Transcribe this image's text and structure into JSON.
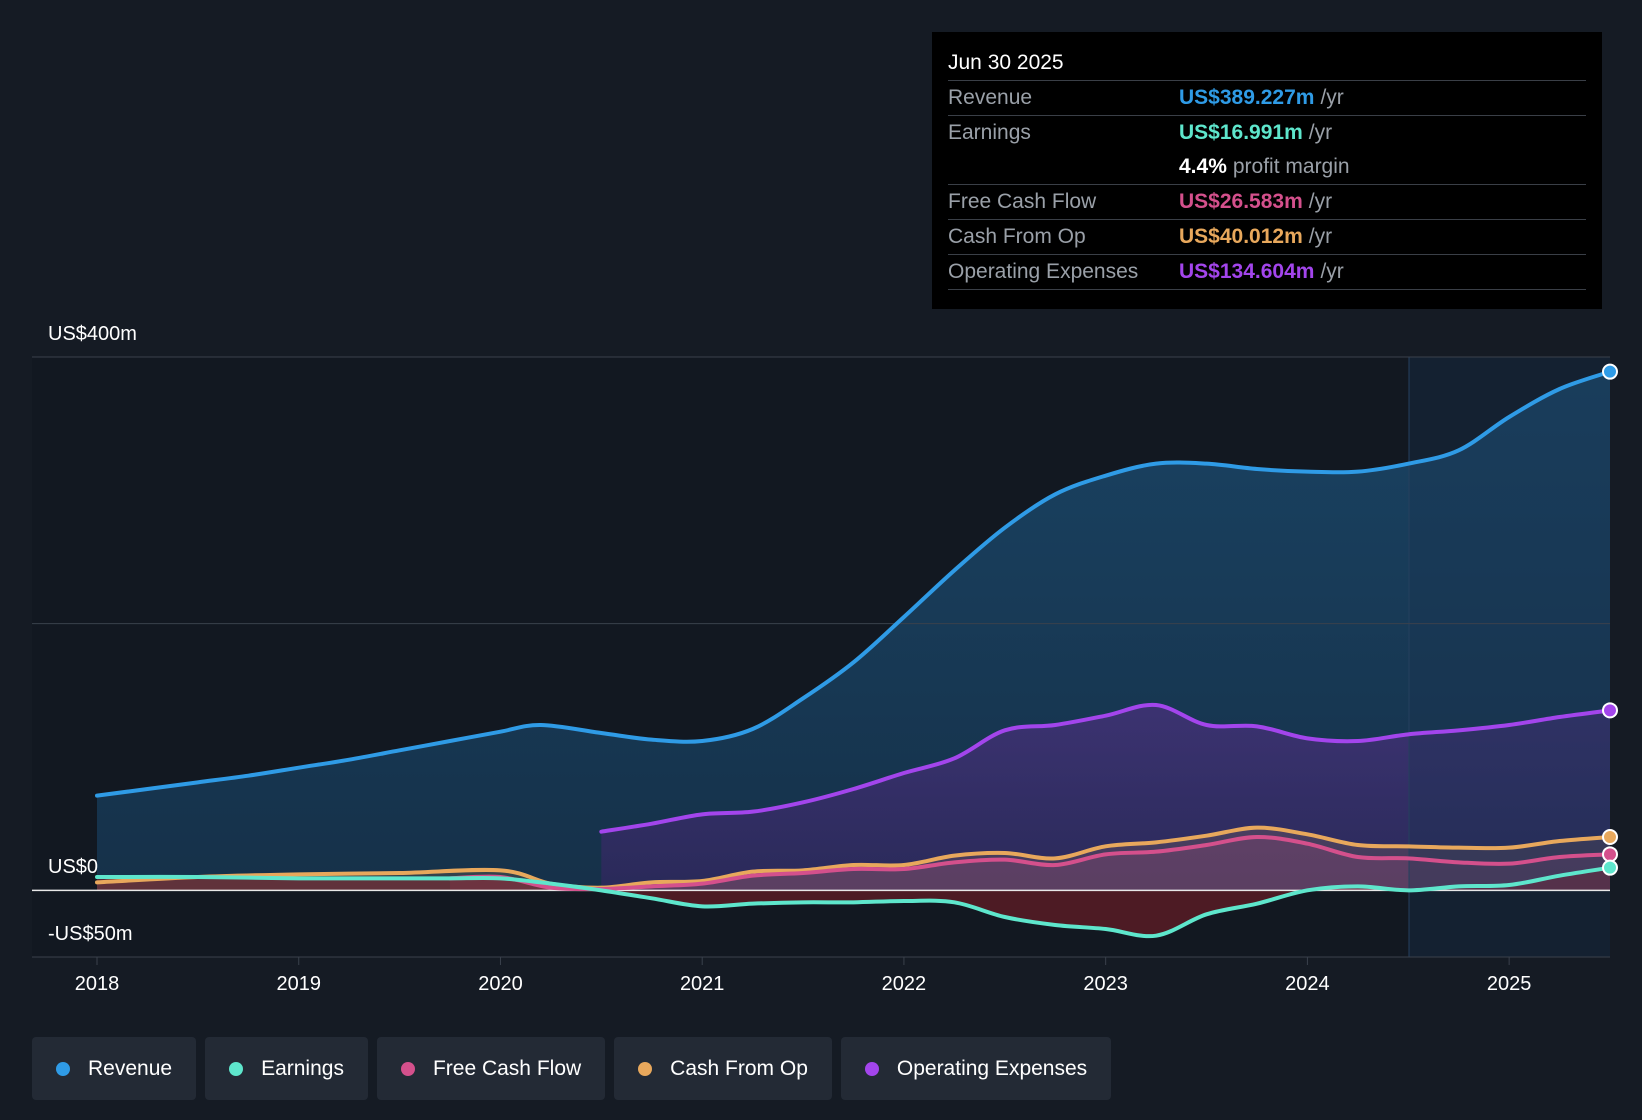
{
  "chart_data": {
    "type": "area",
    "x_ticks": [
      "2018",
      "2019",
      "2020",
      "2021",
      "2022",
      "2023",
      "2024",
      "2025"
    ],
    "y_labels": {
      "top": "US$400m",
      "zero": "US$0",
      "bottom": "-US$50m"
    },
    "ylim": [
      -50,
      400
    ],
    "series": [
      {
        "name": "Revenue",
        "color": "#2f9be6",
        "points": [
          [
            2018.0,
            71
          ],
          [
            2018.25,
            76
          ],
          [
            2018.5,
            81
          ],
          [
            2018.75,
            86
          ],
          [
            2019.0,
            92
          ],
          [
            2019.25,
            98
          ],
          [
            2019.5,
            105
          ],
          [
            2019.75,
            112
          ],
          [
            2020.0,
            119
          ],
          [
            2020.2,
            124
          ],
          [
            2020.5,
            118
          ],
          [
            2020.75,
            113
          ],
          [
            2021.0,
            112
          ],
          [
            2021.25,
            121
          ],
          [
            2021.5,
            144
          ],
          [
            2021.75,
            171
          ],
          [
            2022.0,
            205
          ],
          [
            2022.25,
            240
          ],
          [
            2022.5,
            272
          ],
          [
            2022.75,
            297
          ],
          [
            2023.0,
            311
          ],
          [
            2023.25,
            320
          ],
          [
            2023.5,
            320
          ],
          [
            2023.75,
            316
          ],
          [
            2024.0,
            314
          ],
          [
            2024.25,
            314
          ],
          [
            2024.5,
            320
          ],
          [
            2024.75,
            330
          ],
          [
            2025.0,
            355
          ],
          [
            2025.25,
            376
          ],
          [
            2025.5,
            389
          ]
        ]
      },
      {
        "name": "Earnings",
        "color": "#5ee6cc",
        "points": [
          [
            2018.0,
            10
          ],
          [
            2018.5,
            10
          ],
          [
            2019.0,
            9
          ],
          [
            2019.5,
            9
          ],
          [
            2019.75,
            9
          ],
          [
            2020.0,
            9
          ],
          [
            2020.25,
            5
          ],
          [
            2020.5,
            0
          ],
          [
            2020.75,
            -6
          ],
          [
            2021.0,
            -12
          ],
          [
            2021.25,
            -10
          ],
          [
            2021.5,
            -9
          ],
          [
            2021.75,
            -9
          ],
          [
            2022.0,
            -8
          ],
          [
            2022.25,
            -9
          ],
          [
            2022.5,
            -20
          ],
          [
            2022.75,
            -26
          ],
          [
            2023.0,
            -29
          ],
          [
            2023.25,
            -34
          ],
          [
            2023.5,
            -18
          ],
          [
            2023.75,
            -10
          ],
          [
            2024.0,
            0
          ],
          [
            2024.25,
            3
          ],
          [
            2024.5,
            0
          ],
          [
            2024.75,
            3
          ],
          [
            2025.0,
            4
          ],
          [
            2025.25,
            11
          ],
          [
            2025.5,
            17
          ]
        ]
      },
      {
        "name": "Free Cash Flow",
        "color": "#d4508c",
        "points": [
          [
            2019.75,
            9
          ],
          [
            2020.0,
            10
          ],
          [
            2020.25,
            2
          ],
          [
            2020.5,
            1
          ],
          [
            2020.75,
            3
          ],
          [
            2021.0,
            5
          ],
          [
            2021.25,
            11
          ],
          [
            2021.5,
            13
          ],
          [
            2021.75,
            16
          ],
          [
            2022.0,
            16
          ],
          [
            2022.25,
            21
          ],
          [
            2022.5,
            23
          ],
          [
            2022.75,
            19
          ],
          [
            2023.0,
            27
          ],
          [
            2023.25,
            29
          ],
          [
            2023.5,
            34
          ],
          [
            2023.75,
            40
          ],
          [
            2024.0,
            35
          ],
          [
            2024.25,
            25
          ],
          [
            2024.5,
            24
          ],
          [
            2024.75,
            21
          ],
          [
            2025.0,
            20
          ],
          [
            2025.25,
            25
          ],
          [
            2025.5,
            27
          ]
        ]
      },
      {
        "name": "Cash From Op",
        "color": "#e8a85c",
        "points": [
          [
            2018.0,
            6
          ],
          [
            2018.5,
            10
          ],
          [
            2019.0,
            12
          ],
          [
            2019.5,
            13
          ],
          [
            2020.0,
            15
          ],
          [
            2020.25,
            5
          ],
          [
            2020.5,
            2
          ],
          [
            2020.75,
            6
          ],
          [
            2021.0,
            7
          ],
          [
            2021.25,
            14
          ],
          [
            2021.5,
            15
          ],
          [
            2021.75,
            19
          ],
          [
            2022.0,
            19
          ],
          [
            2022.25,
            26
          ],
          [
            2022.5,
            28
          ],
          [
            2022.75,
            24
          ],
          [
            2023.0,
            33
          ],
          [
            2023.25,
            36
          ],
          [
            2023.5,
            41
          ],
          [
            2023.75,
            47
          ],
          [
            2024.0,
            42
          ],
          [
            2024.25,
            34
          ],
          [
            2024.5,
            33
          ],
          [
            2024.75,
            32
          ],
          [
            2025.0,
            32
          ],
          [
            2025.25,
            37
          ],
          [
            2025.5,
            40
          ]
        ]
      },
      {
        "name": "Operating Expenses",
        "color": "#a345ec",
        "points": [
          [
            2020.5,
            44
          ],
          [
            2020.75,
            50
          ],
          [
            2021.0,
            57
          ],
          [
            2021.25,
            59
          ],
          [
            2021.5,
            66
          ],
          [
            2021.75,
            76
          ],
          [
            2022.0,
            88
          ],
          [
            2022.25,
            99
          ],
          [
            2022.5,
            120
          ],
          [
            2022.75,
            124
          ],
          [
            2023.0,
            131
          ],
          [
            2023.25,
            139
          ],
          [
            2023.5,
            124
          ],
          [
            2023.75,
            123
          ],
          [
            2024.0,
            114
          ],
          [
            2024.25,
            112
          ],
          [
            2024.5,
            117
          ],
          [
            2024.75,
            120
          ],
          [
            2025.0,
            124
          ],
          [
            2025.25,
            130
          ],
          [
            2025.5,
            135
          ]
        ]
      }
    ]
  },
  "tooltip": {
    "date": "Jun 30 2025",
    "rows": [
      {
        "label": "Revenue",
        "value": "US$389.227m",
        "unit": "/yr",
        "color": "#2f9be6"
      },
      {
        "label": "Earnings",
        "value": "US$16.991m",
        "unit": "/yr",
        "color": "#5ee6cc"
      },
      {
        "label": "",
        "value": "4.4%",
        "unit": "profit margin",
        "color": "#ffffff"
      },
      {
        "label": "Free Cash Flow",
        "value": "US$26.583m",
        "unit": "/yr",
        "color": "#d4508c"
      },
      {
        "label": "Cash From Op",
        "value": "US$40.012m",
        "unit": "/yr",
        "color": "#e8a85c"
      },
      {
        "label": "Operating Expenses",
        "value": "US$134.604m",
        "unit": "/yr",
        "color": "#a345ec"
      }
    ]
  },
  "legend": [
    {
      "label": "Revenue",
      "color": "#2f9be6"
    },
    {
      "label": "Earnings",
      "color": "#5ee6cc"
    },
    {
      "label": "Free Cash Flow",
      "color": "#d4508c"
    },
    {
      "label": "Cash From Op",
      "color": "#e8a85c"
    },
    {
      "label": "Operating Expenses",
      "color": "#a345ec"
    }
  ]
}
